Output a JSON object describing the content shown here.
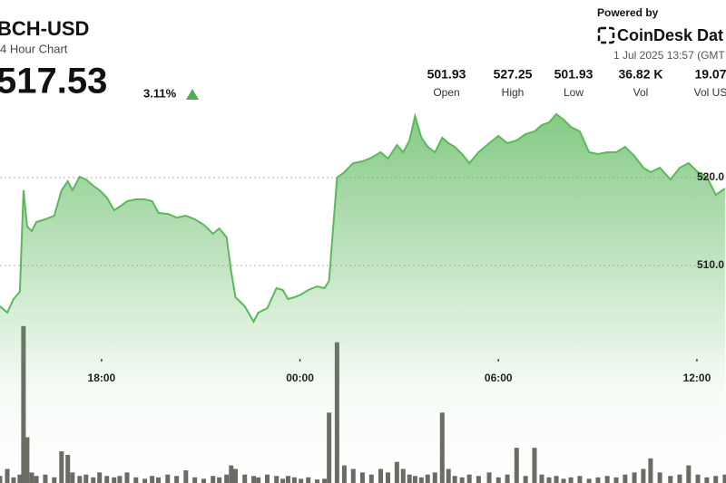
{
  "chart_data": {
    "type": "line",
    "title": "BCH-USD",
    "subtitle": "4 Hour Chart",
    "price": 517.53,
    "change": "3.11%",
    "powered_by": "Powered by",
    "brand": "CoinDesk Dat",
    "timestamp": "1 Jul 2025 13:57 (GMT",
    "stats": [
      {
        "value": 501.93,
        "label": "Open"
      },
      {
        "value": 527.25,
        "label": "High"
      },
      {
        "value": 501.93,
        "label": "Low"
      },
      {
        "value": "36.82 K",
        "label": "Vol"
      },
      {
        "value": "19.07",
        "label": "Vol US"
      }
    ],
    "xlim": [
      14.93,
      36.88
    ],
    "xticks": [
      {
        "value": 18,
        "label": "18:00"
      },
      {
        "value": 24,
        "label": "00:00"
      },
      {
        "value": 30,
        "label": "06:00"
      },
      {
        "value": 36,
        "label": "12:00"
      }
    ],
    "ylim": [
      498.97,
      529.9
    ],
    "yticks": [
      {
        "value": 510,
        "label": "510.0"
      },
      {
        "value": 520,
        "label": "520.0"
      }
    ],
    "y2lim": [
      0,
      300
    ],
    "grid": true,
    "series": [
      {
        "color": "#5cb85c",
        "x": [
          14.93,
          15.15,
          15.34,
          15.53,
          15.64,
          15.75,
          15.89,
          16.03,
          16.3,
          16.57,
          16.79,
          16.98,
          17.12,
          17.34,
          17.53,
          17.75,
          17.94,
          18.16,
          18.38,
          18.55,
          18.77,
          19.04,
          19.31,
          19.53,
          19.72,
          20.0,
          20.27,
          20.55,
          20.82,
          21.09,
          21.37,
          21.56,
          21.78,
          21.92,
          22.05,
          22.33,
          22.6,
          22.74,
          23.01,
          23.29,
          23.48,
          23.64,
          23.83,
          24.03,
          24.25,
          24.52,
          24.74,
          24.88,
          25.12,
          25.34,
          25.61,
          25.89,
          26.16,
          26.44,
          26.66,
          26.93,
          27.12,
          27.31,
          27.48,
          27.67,
          27.86,
          28.08,
          28.3,
          28.49,
          28.68,
          28.9,
          29.12,
          29.4,
          29.72,
          30.0,
          30.27,
          30.55,
          30.82,
          31.09,
          31.31,
          31.53,
          31.75,
          31.97,
          32.19,
          32.46,
          32.74,
          33.01,
          33.29,
          33.56,
          33.83,
          34.11,
          34.38,
          34.6,
          34.88,
          35.2,
          35.48,
          35.75,
          36.03,
          36.3,
          36.57,
          36.85
        ],
        "values": [
          505.36,
          504.64,
          506.19,
          507.01,
          518.56,
          514.43,
          513.92,
          514.95,
          515.26,
          515.67,
          518.56,
          519.59,
          518.56,
          520.1,
          519.79,
          519.07,
          518.56,
          517.73,
          516.29,
          516.7,
          517.32,
          517.53,
          517.53,
          517.32,
          515.98,
          515.88,
          515.46,
          515.67,
          515.26,
          514.64,
          513.61,
          514.23,
          513.2,
          509.28,
          506.39,
          505.36,
          503.61,
          504.64,
          505.15,
          507.42,
          507.22,
          506.19,
          506.39,
          506.7,
          507.22,
          507.63,
          507.42,
          508.25,
          520.0,
          520.62,
          521.65,
          521.86,
          522.27,
          522.89,
          522.16,
          523.71,
          522.89,
          524.23,
          527.01,
          524.54,
          523.51,
          522.89,
          524.54,
          523.92,
          523.51,
          522.68,
          521.65,
          522.89,
          523.92,
          524.74,
          523.92,
          524.23,
          524.95,
          525.26,
          525.98,
          526.29,
          527.22,
          526.6,
          525.77,
          525.26,
          522.89,
          522.68,
          522.89,
          522.89,
          523.51,
          522.47,
          521.13,
          520.62,
          521.13,
          519.79,
          521.13,
          521.65,
          520.62,
          520.1,
          518.04,
          518.76
        ]
      },
      {
        "color": "#6b6b63",
        "axis": "y2",
        "values": [
          10,
          20,
          8,
          12,
          223,
          65,
          15,
          10,
          12,
          8,
          45,
          40,
          15,
          10,
          12,
          8,
          15,
          10,
          8,
          10,
          15,
          8,
          6,
          10,
          8,
          12,
          10,
          18,
          8,
          6,
          10,
          8,
          12,
          25,
          20,
          12,
          10,
          8,
          12,
          10,
          6,
          10,
          8,
          6,
          8,
          5,
          6,
          100,
          200,
          25,
          20,
          15,
          12,
          20,
          15,
          30,
          20,
          12,
          10,
          8,
          12,
          15,
          100,
          20,
          10,
          8,
          12,
          10,
          15,
          8,
          12,
          50,
          10,
          50,
          12,
          8,
          10,
          6,
          8,
          10,
          6,
          8,
          10,
          8,
          12,
          15,
          20,
          35,
          15,
          10,
          12,
          25,
          12,
          8,
          10,
          12
        ]
      }
    ]
  }
}
